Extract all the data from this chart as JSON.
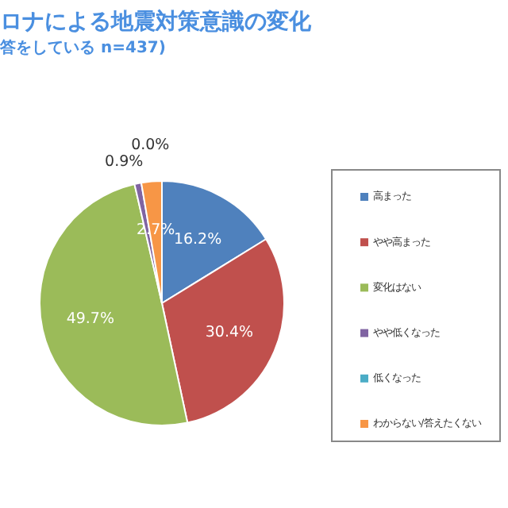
{
  "chart_data": {
    "type": "pie",
    "title": "ロナによる地震対策意識の変化",
    "subtitle": "答をしている n=437)",
    "categories": [
      "高まった",
      "やや高まった",
      "変化はない",
      "やや低くなった",
      "低くなった",
      "わからない/答えたくない"
    ],
    "values": [
      16.2,
      30.4,
      49.7,
      0.9,
      0.0,
      2.7
    ],
    "value_labels": [
      "16.2%",
      "30.4%",
      "49.7%",
      "0.9%",
      "0.0%",
      "2.7%"
    ],
    "colors": [
      "#4f81bd",
      "#c0504d",
      "#9bbb59",
      "#8064a2",
      "#4bacc6",
      "#f79646"
    ],
    "legend": "right"
  }
}
